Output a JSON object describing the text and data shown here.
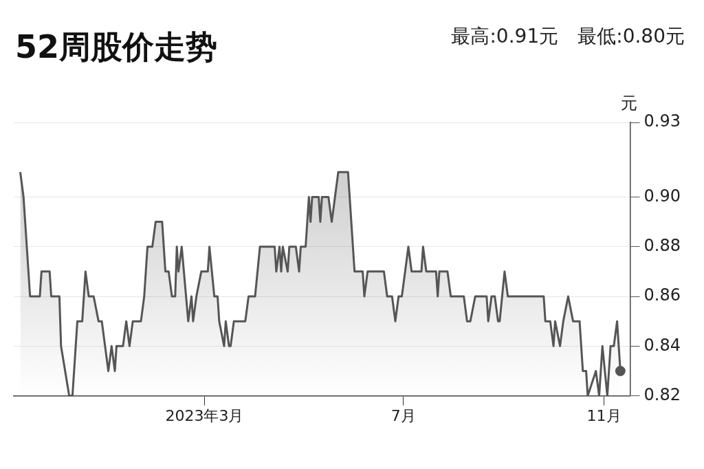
{
  "chart_data": {
    "type": "area",
    "title": "52周股价走势",
    "subtitle": "最高:0.91元　最低:0.80元",
    "ylabel": "元",
    "xlim": [
      "2022-11-04",
      "2023-11-17"
    ],
    "xticks": [
      {
        "value": "2023-03-01",
        "label": "2023年3月"
      },
      {
        "value": "2023-07-01",
        "label": "7月"
      },
      {
        "value": "2023-11-01",
        "label": "11月"
      }
    ],
    "ylim": [
      0.82,
      0.93
    ],
    "yticks": [
      {
        "value": 0.82,
        "label": "0.82"
      },
      {
        "value": 0.84,
        "label": "0.84"
      },
      {
        "value": 0.86,
        "label": "0.86"
      },
      {
        "value": 0.88,
        "label": "0.88"
      },
      {
        "value": 0.9,
        "label": "0.90"
      },
      {
        "value": 0.93,
        "label": "0.93"
      }
    ],
    "grid": "y",
    "legend": false,
    "series": [
      {
        "color": "#555555",
        "x": [
          "2022-11-08",
          "2022-11-10",
          "2022-11-14",
          "2022-11-20",
          "2022-11-21",
          "2022-11-26",
          "2022-11-27",
          "2022-12-02",
          "2022-12-03",
          "2022-12-08",
          "2022-12-10",
          "2022-12-13",
          "2022-12-16",
          "2022-12-18",
          "2022-12-20",
          "2022-12-23",
          "2022-12-26",
          "2022-12-28",
          "2023-01-01",
          "2023-01-03",
          "2023-01-05",
          "2023-01-06",
          "2023-01-10",
          "2023-01-12",
          "2023-01-14",
          "2023-01-16",
          "2023-01-21",
          "2023-01-23",
          "2023-01-25",
          "2023-01-28",
          "2023-01-30",
          "2023-02-03",
          "2023-02-05",
          "2023-02-07",
          "2023-02-09",
          "2023-02-11",
          "2023-02-12",
          "2023-02-13",
          "2023-02-15",
          "2023-02-19",
          "2023-02-21",
          "2023-02-22",
          "2023-02-24",
          "2023-02-27",
          "2023-03-03",
          "2023-03-04",
          "2023-03-07",
          "2023-03-09",
          "2023-03-10",
          "2023-03-13",
          "2023-03-14",
          "2023-03-16",
          "2023-03-17",
          "2023-03-19",
          "2023-03-26",
          "2023-03-28",
          "2023-04-01",
          "2023-04-04",
          "2023-04-13",
          "2023-04-14",
          "2023-04-16",
          "2023-04-17",
          "2023-04-18",
          "2023-04-21",
          "2023-04-22",
          "2023-04-26",
          "2023-04-28",
          "2023-04-29",
          "2023-05-02",
          "2023-05-04",
          "2023-05-05",
          "2023-05-06",
          "2023-05-10",
          "2023-05-11",
          "2023-05-12",
          "2023-05-16",
          "2023-05-18",
          "2023-05-20",
          "2023-05-22",
          "2023-05-28",
          "2023-06-01",
          "2023-06-06",
          "2023-06-07",
          "2023-06-09",
          "2023-06-19",
          "2023-06-21",
          "2023-06-24",
          "2023-06-26",
          "2023-06-28",
          "2023-06-30",
          "2023-07-02",
          "2023-07-04",
          "2023-07-06",
          "2023-07-12",
          "2023-07-13",
          "2023-07-15",
          "2023-07-21",
          "2023-07-22",
          "2023-07-23",
          "2023-07-28",
          "2023-07-30",
          "2023-08-07",
          "2023-08-09",
          "2023-08-11",
          "2023-08-14",
          "2023-08-21",
          "2023-08-22",
          "2023-08-24",
          "2023-08-26",
          "2023-08-28",
          "2023-08-29",
          "2023-09-01",
          "2023-09-03",
          "2023-09-25",
          "2023-09-26",
          "2023-09-29",
          "2023-10-01",
          "2023-10-02",
          "2023-10-05",
          "2023-10-07",
          "2023-10-10",
          "2023-10-13",
          "2023-10-17",
          "2023-10-19",
          "2023-10-21",
          "2023-10-22",
          "2023-10-27",
          "2023-10-29",
          "2023-10-31",
          "2023-11-03",
          "2023-11-05",
          "2023-11-07",
          "2023-11-09",
          "2023-11-11"
        ],
        "values": [
          0.91,
          0.9,
          0.86,
          0.86,
          0.87,
          0.87,
          0.86,
          0.86,
          0.84,
          0.82,
          0.82,
          0.85,
          0.85,
          0.87,
          0.86,
          0.86,
          0.85,
          0.85,
          0.83,
          0.84,
          0.83,
          0.84,
          0.84,
          0.85,
          0.84,
          0.85,
          0.85,
          0.86,
          0.88,
          0.88,
          0.89,
          0.89,
          0.87,
          0.87,
          0.86,
          0.86,
          0.88,
          0.87,
          0.88,
          0.85,
          0.86,
          0.85,
          0.86,
          0.87,
          0.87,
          0.88,
          0.86,
          0.86,
          0.85,
          0.84,
          0.85,
          0.84,
          0.84,
          0.85,
          0.85,
          0.86,
          0.86,
          0.88,
          0.88,
          0.87,
          0.88,
          0.87,
          0.88,
          0.87,
          0.88,
          0.88,
          0.87,
          0.88,
          0.88,
          0.9,
          0.89,
          0.9,
          0.9,
          0.89,
          0.9,
          0.9,
          0.89,
          0.9,
          0.91,
          0.91,
          0.87,
          0.87,
          0.86,
          0.87,
          0.87,
          0.86,
          0.86,
          0.85,
          0.86,
          0.86,
          0.87,
          0.88,
          0.87,
          0.87,
          0.88,
          0.87,
          0.87,
          0.86,
          0.87,
          0.87,
          0.86,
          0.86,
          0.85,
          0.85,
          0.86,
          0.86,
          0.85,
          0.86,
          0.86,
          0.85,
          0.85,
          0.87,
          0.86,
          0.86,
          0.85,
          0.85,
          0.84,
          0.85,
          0.84,
          0.85,
          0.86,
          0.85,
          0.85,
          0.83,
          0.83,
          0.82,
          0.83,
          0.82,
          0.84,
          0.82,
          0.84,
          0.84,
          0.85,
          0.83
        ]
      }
    ]
  }
}
